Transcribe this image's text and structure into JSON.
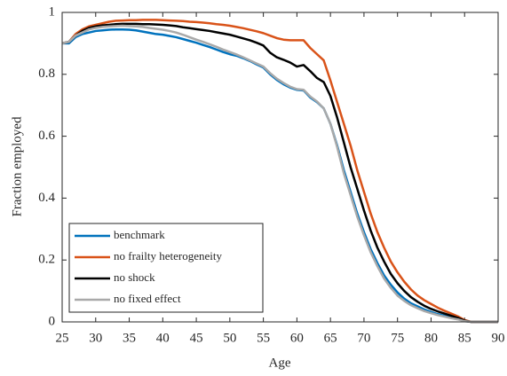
{
  "chart_data": {
    "type": "line",
    "xlabel": "Age",
    "ylabel": "Fraction employed",
    "x": [
      25,
      26,
      27,
      28,
      29,
      30,
      31,
      32,
      33,
      34,
      35,
      36,
      37,
      38,
      39,
      40,
      41,
      42,
      43,
      44,
      45,
      46,
      47,
      48,
      49,
      50,
      51,
      52,
      53,
      54,
      55,
      56,
      57,
      58,
      59,
      60,
      61,
      62,
      63,
      64,
      65,
      66,
      67,
      68,
      69,
      70,
      71,
      72,
      73,
      74,
      75,
      76,
      77,
      78,
      79,
      80,
      81,
      82,
      83,
      84,
      85,
      86,
      87,
      88,
      89,
      90
    ],
    "series": [
      {
        "name": "benchmark",
        "color": "#0072bd",
        "values": [
          0.9,
          0.9,
          0.92,
          0.93,
          0.935,
          0.94,
          0.942,
          0.944,
          0.945,
          0.945,
          0.944,
          0.942,
          0.938,
          0.934,
          0.93,
          0.928,
          0.924,
          0.92,
          0.914,
          0.908,
          0.902,
          0.895,
          0.888,
          0.88,
          0.872,
          0.865,
          0.86,
          0.852,
          0.843,
          0.832,
          0.822,
          0.8,
          0.782,
          0.768,
          0.757,
          0.75,
          0.748,
          0.725,
          0.71,
          0.69,
          0.64,
          0.57,
          0.49,
          0.42,
          0.35,
          0.29,
          0.235,
          0.19,
          0.15,
          0.12,
          0.095,
          0.075,
          0.06,
          0.05,
          0.04,
          0.032,
          0.025,
          0.02,
          0.015,
          0.01,
          0.003,
          0,
          0,
          0,
          0,
          0
        ]
      },
      {
        "name": "no frailty heterogeneity",
        "color": "#d95319",
        "values": [
          0.9,
          0.905,
          0.93,
          0.945,
          0.955,
          0.96,
          0.965,
          0.97,
          0.973,
          0.974,
          0.975,
          0.975,
          0.976,
          0.976,
          0.976,
          0.975,
          0.974,
          0.973,
          0.972,
          0.97,
          0.969,
          0.967,
          0.965,
          0.962,
          0.96,
          0.957,
          0.953,
          0.949,
          0.944,
          0.939,
          0.933,
          0.925,
          0.917,
          0.912,
          0.91,
          0.91,
          0.91,
          0.885,
          0.865,
          0.845,
          0.78,
          0.71,
          0.64,
          0.57,
          0.49,
          0.42,
          0.35,
          0.29,
          0.24,
          0.195,
          0.16,
          0.13,
          0.105,
          0.085,
          0.07,
          0.058,
          0.046,
          0.036,
          0.027,
          0.018,
          0.006,
          0,
          0,
          0,
          0,
          0
        ]
      },
      {
        "name": "no shock",
        "color": "#000000",
        "values": [
          0.9,
          0.905,
          0.925,
          0.94,
          0.95,
          0.955,
          0.958,
          0.96,
          0.962,
          0.963,
          0.963,
          0.963,
          0.962,
          0.962,
          0.961,
          0.96,
          0.958,
          0.956,
          0.952,
          0.949,
          0.946,
          0.943,
          0.94,
          0.936,
          0.932,
          0.928,
          0.922,
          0.916,
          0.91,
          0.902,
          0.893,
          0.87,
          0.855,
          0.847,
          0.838,
          0.825,
          0.83,
          0.81,
          0.788,
          0.775,
          0.73,
          0.66,
          0.58,
          0.5,
          0.43,
          0.36,
          0.295,
          0.24,
          0.195,
          0.155,
          0.125,
          0.1,
          0.08,
          0.065,
          0.052,
          0.042,
          0.034,
          0.027,
          0.02,
          0.013,
          0.004,
          0,
          0,
          0,
          0,
          0
        ]
      },
      {
        "name": "no fixed effect",
        "color": "#a9a9a9",
        "values": [
          0.9,
          0.905,
          0.925,
          0.935,
          0.945,
          0.95,
          0.953,
          0.955,
          0.956,
          0.957,
          0.956,
          0.955,
          0.953,
          0.95,
          0.947,
          0.944,
          0.94,
          0.935,
          0.928,
          0.92,
          0.912,
          0.905,
          0.897,
          0.889,
          0.88,
          0.872,
          0.864,
          0.855,
          0.845,
          0.835,
          0.825,
          0.804,
          0.786,
          0.772,
          0.76,
          0.752,
          0.75,
          0.728,
          0.712,
          0.69,
          0.64,
          0.565,
          0.48,
          0.41,
          0.34,
          0.28,
          0.225,
          0.18,
          0.14,
          0.11,
          0.085,
          0.068,
          0.054,
          0.044,
          0.035,
          0.028,
          0.022,
          0.017,
          0.012,
          0.008,
          0.002,
          0,
          0,
          0,
          0,
          0
        ]
      }
    ],
    "xlim": [
      25,
      90
    ],
    "xticks": [
      25,
      30,
      35,
      40,
      45,
      50,
      55,
      60,
      65,
      70,
      75,
      80,
      85,
      90
    ],
    "ylim": [
      0,
      1
    ],
    "yticks": [
      0,
      0.2,
      0.4,
      0.6,
      0.8,
      1
    ],
    "grid": false,
    "legend": "lower left"
  }
}
